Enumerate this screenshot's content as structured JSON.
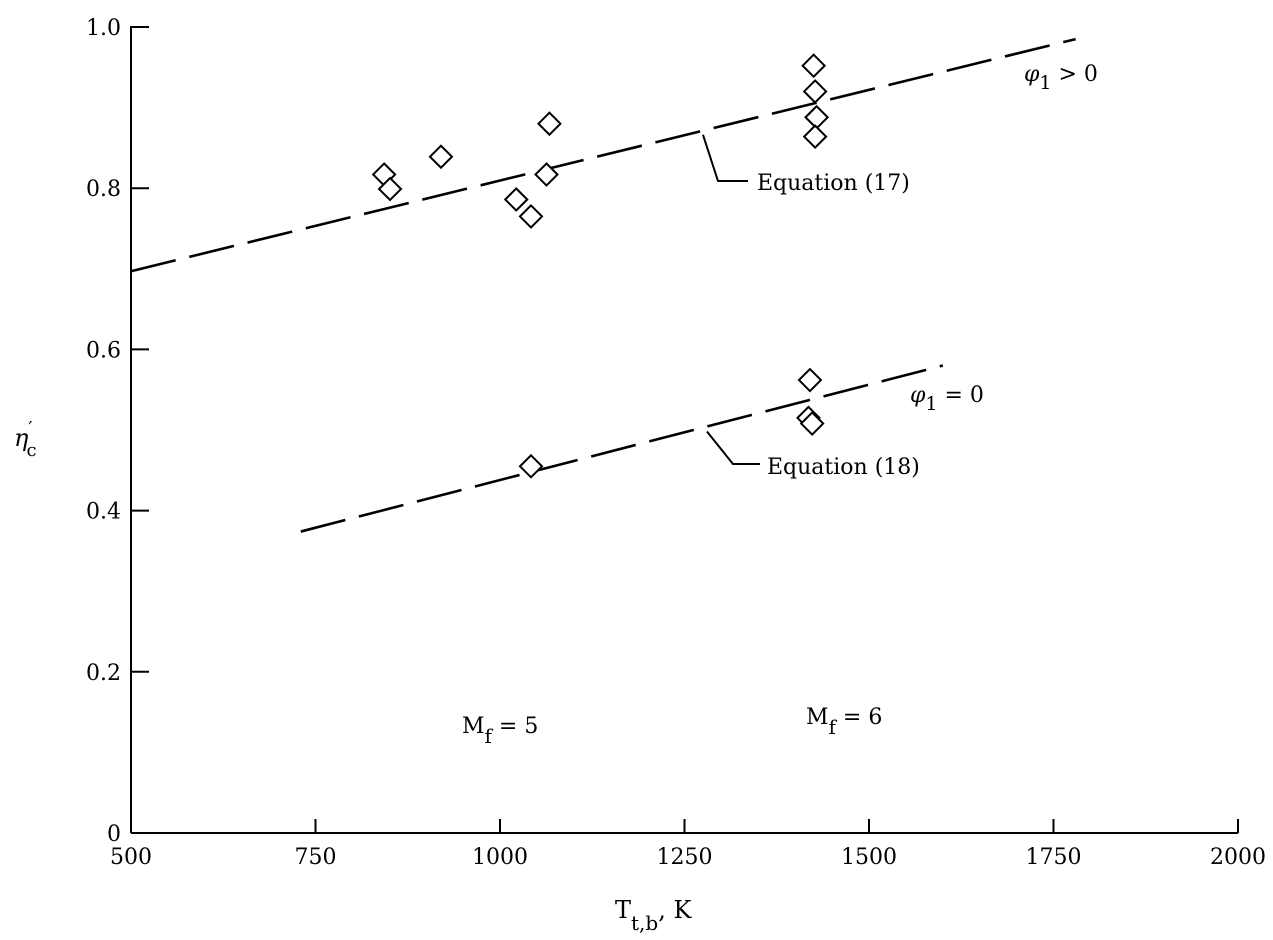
{
  "chart_data": {
    "type": "scatter",
    "title": "",
    "xlabel": {
      "main": "T",
      "sub": "t,b",
      "suffix": ", K"
    },
    "ylabel": {
      "main": "η",
      "prime": "′",
      "sub": "c"
    },
    "xlim": [
      500,
      2000
    ],
    "ylim": [
      0,
      1.0
    ],
    "x_ticks": [
      500,
      750,
      1000,
      1250,
      1500,
      1750,
      2000
    ],
    "x_tick_labels": [
      "500",
      "750",
      "1000",
      "1250",
      "1500",
      "1750",
      "2000"
    ],
    "y_ticks": [
      0,
      0.2,
      0.4,
      0.6,
      0.8,
      1.0
    ],
    "y_tick_labels": [
      "0",
      "0.2",
      "0.4",
      "0.6",
      "0.8",
      "1.0"
    ],
    "grid": false,
    "series": [
      {
        "name": "φ1 > 0",
        "label": {
          "symbol": "φ",
          "sub": "1",
          "rest": " > 0"
        },
        "marker": "diamond",
        "x": [
          843,
          851,
          920,
          1022,
          1042,
          1063,
          1067,
          1425,
          1427,
          1429,
          1429,
          1427
        ],
        "y": [
          0.817,
          0.799,
          0.839,
          0.786,
          0.765,
          0.817,
          0.88,
          0.952,
          0.92,
          0.888,
          0.888,
          0.864
        ],
        "fit": {
          "label": "Equation (17)",
          "x": [
            500,
            1780
          ],
          "y": [
            0.697,
            0.985
          ]
        }
      },
      {
        "name": "φ1 = 0",
        "label": {
          "symbol": "φ",
          "sub": "1",
          "rest": " = 0"
        },
        "marker": "diamond",
        "x": [
          1042,
          1420,
          1418,
          1423
        ],
        "y": [
          0.455,
          0.562,
          0.515,
          0.508
        ],
        "fit": {
          "label": "Equation (18)",
          "x": [
            730,
            1600
          ],
          "y": [
            0.374,
            0.58
          ]
        }
      }
    ],
    "annotations": [
      {
        "main": "M",
        "sub": "f",
        "rest": " = 5"
      },
      {
        "main": "M",
        "sub": "f",
        "rest": " = 6"
      }
    ]
  }
}
